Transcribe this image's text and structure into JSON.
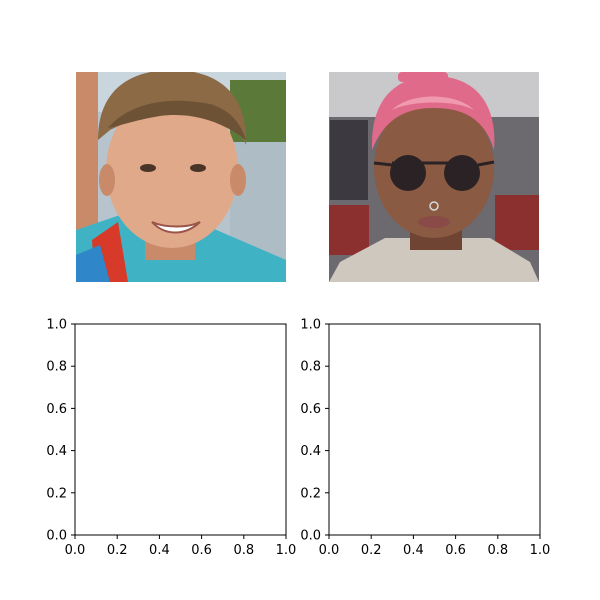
{
  "figure": {
    "background": "#ffffff",
    "axis_color": "#000000"
  },
  "images": [
    {
      "subject": "smiling teenage boy with light brown hair, water and greenery in background",
      "colors": {
        "bg_top": "#c7d4dd",
        "bg_bottom": "#a9b7c2",
        "greenery": "#5b7a3a",
        "skin": "#e0a98a",
        "skin_shade": "#c98a6a",
        "hair": "#8b6a45",
        "hair_dark": "#6e5235",
        "shirt_left": "#3fb3c4",
        "shirt_right": "#2f86c9",
        "collar": "#d83a2a"
      }
    },
    {
      "subject": "woman with pink hair and round dark sunglasses, patterned top, blurred street background",
      "colors": {
        "bg": "#6c6a6e",
        "bg_light": "#c9c9cc",
        "bg_red": "#8c2f2f",
        "skin": "#8a5a42",
        "skin_shade": "#6f4432",
        "hair": "#e06a8a",
        "hair_light": "#f09ab0",
        "glasses": "#2a2224",
        "lips": "#8a4a48",
        "top": "#cfc8bf"
      }
    }
  ],
  "chart_data": [
    {
      "type": "scatter",
      "series": [],
      "xlim": [
        0.0,
        1.0
      ],
      "ylim": [
        0.0,
        1.0
      ],
      "xticks": [
        "0.0",
        "0.2",
        "0.4",
        "0.6",
        "0.8",
        "1.0"
      ],
      "yticks": [
        "0.0",
        "0.2",
        "0.4",
        "0.6",
        "0.8",
        "1.0"
      ],
      "grid": false
    },
    {
      "type": "scatter",
      "series": [],
      "xlim": [
        0.0,
        1.0
      ],
      "ylim": [
        0.0,
        1.0
      ],
      "xticks": [
        "0.0",
        "0.2",
        "0.4",
        "0.6",
        "0.8",
        "1.0"
      ],
      "yticks": [
        "0.0",
        "0.2",
        "0.4",
        "0.6",
        "0.8",
        "1.0"
      ],
      "grid": false
    }
  ]
}
